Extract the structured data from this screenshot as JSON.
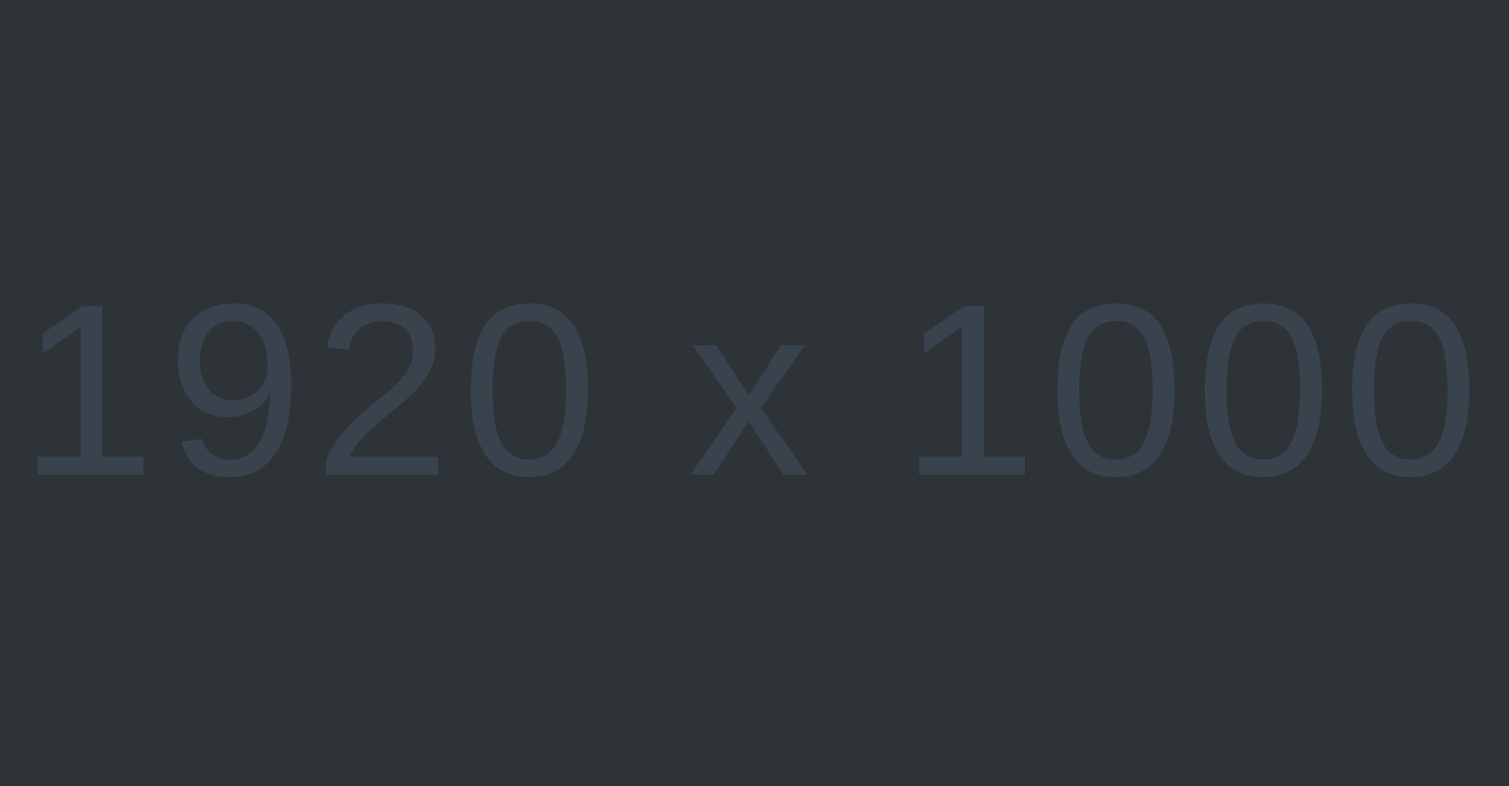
{
  "placeholder": {
    "label": "1920 x 1000",
    "background_color": "#2e3338",
    "text_color": "#38434d"
  }
}
